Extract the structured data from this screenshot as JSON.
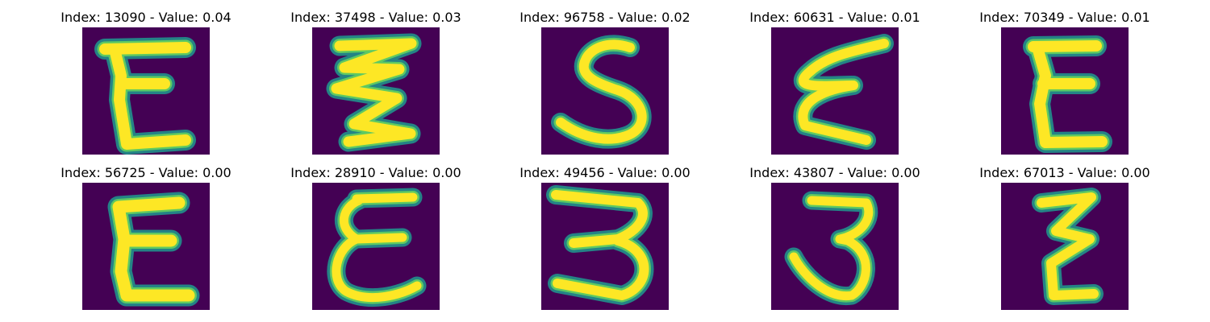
{
  "figure": {
    "colors": {
      "background": "#440154",
      "glow": "#21918c",
      "mid": "#5ec962",
      "stroke": "#fde725"
    },
    "panels": [
      {
        "title": "Index: 13090 - Value: 0.04",
        "glyph": "E (block-shaped)"
      },
      {
        "title": "Index: 37498 - Value: 0.03",
        "glyph": "zigzag E"
      },
      {
        "title": "Index: 96758 - Value: 0.02",
        "glyph": "S"
      },
      {
        "title": "Index: 60631 - Value: 0.01",
        "glyph": "slanted E"
      },
      {
        "title": "Index: 70349 - Value: 0.01",
        "glyph": "E (block-shaped)"
      },
      {
        "title": "Index: 56725 - Value: 0.00",
        "glyph": "E with thick top"
      },
      {
        "title": "Index: 28910 - Value: 0.00",
        "glyph": "cursive E"
      },
      {
        "title": "Index: 49456 - Value: 0.00",
        "glyph": "3"
      },
      {
        "title": "Index: 43807 - Value: 0.00",
        "glyph": "3"
      },
      {
        "title": "Index: 67013 - Value: 0.00",
        "glyph": "zigzag E"
      }
    ]
  }
}
